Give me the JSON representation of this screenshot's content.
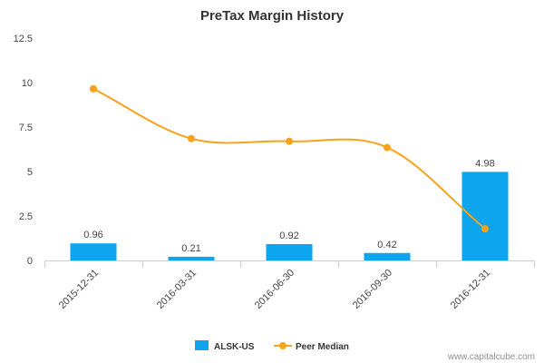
{
  "chart_data": {
    "type": "bar",
    "title": "PreTax Margin History",
    "xlabel": "",
    "ylabel": "",
    "categories": [
      "2015-12-31",
      "2016-03-31",
      "2016-06-30",
      "2016-09-30",
      "2016-12-31"
    ],
    "y_ticks": [
      "0",
      "2.5",
      "5",
      "7.5",
      "10",
      "12.5"
    ],
    "ylim": [
      0,
      12.5
    ],
    "grid": false,
    "legend_position": "bottom-center",
    "series": [
      {
        "name": "ALSK-US",
        "type": "bar",
        "color": "#0ea5ef",
        "values": [
          0.96,
          0.21,
          0.92,
          0.42,
          4.98
        ],
        "data_labels": [
          "0.96",
          "0.21",
          "0.92",
          "0.42",
          "4.98"
        ]
      },
      {
        "name": "Peer Median",
        "type": "line",
        "color": "#f7a21b",
        "values": [
          9.65,
          6.85,
          6.7,
          6.35,
          1.78
        ]
      }
    ]
  },
  "credit": "www.capitalcube.com"
}
